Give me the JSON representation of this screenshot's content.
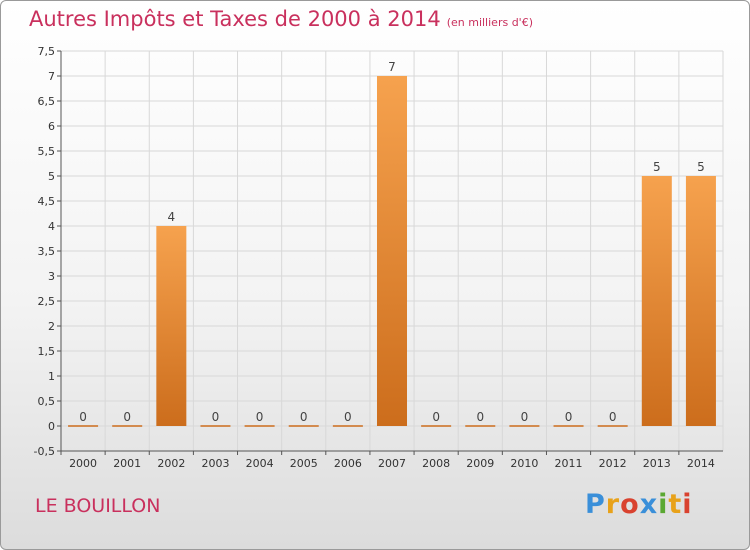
{
  "title": "Autres Impôts et Taxes de 2000 à 2014",
  "unit": "(en milliers d'€)",
  "commune": "LE BOUILLON",
  "logo": {
    "text": "Proxiti",
    "letters": [
      {
        "ch": "P",
        "color": "#3a8fd9"
      },
      {
        "ch": "r",
        "color": "#e8a21a"
      },
      {
        "ch": "o",
        "color": "#d9422f"
      },
      {
        "ch": "x",
        "color": "#3a8fd9"
      },
      {
        "ch": "i",
        "color": "#5aa832"
      },
      {
        "ch": "t",
        "color": "#e8a21a"
      },
      {
        "ch": "i",
        "color": "#d9422f"
      }
    ]
  },
  "colors": {
    "accent": "#c9305d",
    "bar_light": "#f6a24e",
    "bar_dark": "#cc6d1c",
    "grid": "#d8d8d8"
  },
  "chart_data": {
    "type": "bar",
    "categories": [
      "2000",
      "2001",
      "2002",
      "2003",
      "2004",
      "2005",
      "2006",
      "2007",
      "2008",
      "2009",
      "2010",
      "2011",
      "2012",
      "2013",
      "2014"
    ],
    "values": [
      0,
      0,
      4,
      0,
      0,
      0,
      0,
      7,
      0,
      0,
      0,
      0,
      0,
      5,
      5
    ],
    "data_labels": [
      "0",
      "0",
      "4",
      "0",
      "0",
      "0",
      "0",
      "7",
      "0",
      "0",
      "0",
      "0",
      "0",
      "5",
      "5"
    ],
    "yticks": [
      -0.5,
      0,
      0.5,
      1,
      1.5,
      2,
      2.5,
      3,
      3.5,
      4,
      4.5,
      5,
      5.5,
      6,
      6.5,
      7,
      7.5
    ],
    "ytick_labels": [
      "-0,5",
      "0",
      "0,5",
      "1",
      "1,5",
      "2",
      "2,5",
      "3",
      "3,5",
      "4",
      "4,5",
      "5",
      "5,5",
      "6",
      "6,5",
      "7",
      "7,5"
    ],
    "ylim": [
      -0.5,
      7.5
    ],
    "grid": true,
    "legend": "none"
  }
}
